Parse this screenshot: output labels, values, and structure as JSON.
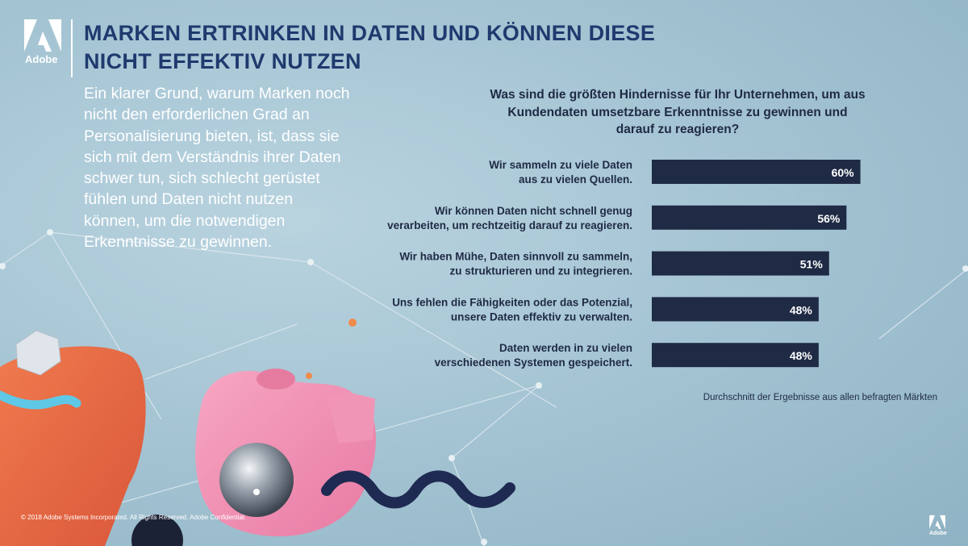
{
  "branding": {
    "logo_text": "Adobe",
    "copyright": "© 2018 Adobe Systems Incorporated.  All Rights Reserved.  Adobe Confidential."
  },
  "headline": {
    "lines": [
      "MARKEN ERTRINKEN IN DATEN UND KÖNNEN DIESE",
      "NICHT EFFEKTIV NUTZEN"
    ]
  },
  "intro": {
    "lines": [
      "Ein klarer Grund, warum Marken noch",
      "nicht den erforderlichen Grad an",
      "Personalisierung bieten, ist, dass sie",
      "sich mit dem Verständnis ihrer Daten",
      "schwer tun, sich schlecht gerüstet",
      "fühlen und Daten nicht nutzen",
      "können, um die notwendigen",
      "Erkenntnisse zu gewinnen."
    ]
  },
  "chart_data": {
    "type": "bar",
    "orientation": "horizontal",
    "title_lines": [
      "Was sind die größten Hindernisse für Ihr Unternehmen, um aus",
      "Kundendaten umsetzbare Erkenntnisse zu gewinnen und",
      "darauf zu reagieren?"
    ],
    "categories": [
      [
        "Wir sammeln zu viele Daten",
        "aus zu vielen Quellen."
      ],
      [
        "Wir können Daten nicht schnell genug",
        "verarbeiten, um rechtzeitig darauf zu reagieren."
      ],
      [
        "Wir haben Mühe, Daten sinnvoll zu sammeln,",
        "zu strukturieren und zu integrieren."
      ],
      [
        "Uns fehlen die Fähigkeiten oder das Potenzial,",
        "unsere Daten effektiv zu verwalten."
      ],
      [
        "Daten werden in zu vielen",
        "verschiedenen Systemen gespeichert."
      ]
    ],
    "values": [
      60,
      56,
      51,
      48,
      48
    ],
    "value_labels": [
      "60%",
      "56%",
      "51%",
      "48%",
      "48%"
    ],
    "unit": "%",
    "bar_color": "#1f2a44",
    "footnote": "Durchschnitt der Ergebnisse aus allen befragten Märkten"
  },
  "colors": {
    "title": "#1e3a6e",
    "bar": "#1f2a44"
  }
}
